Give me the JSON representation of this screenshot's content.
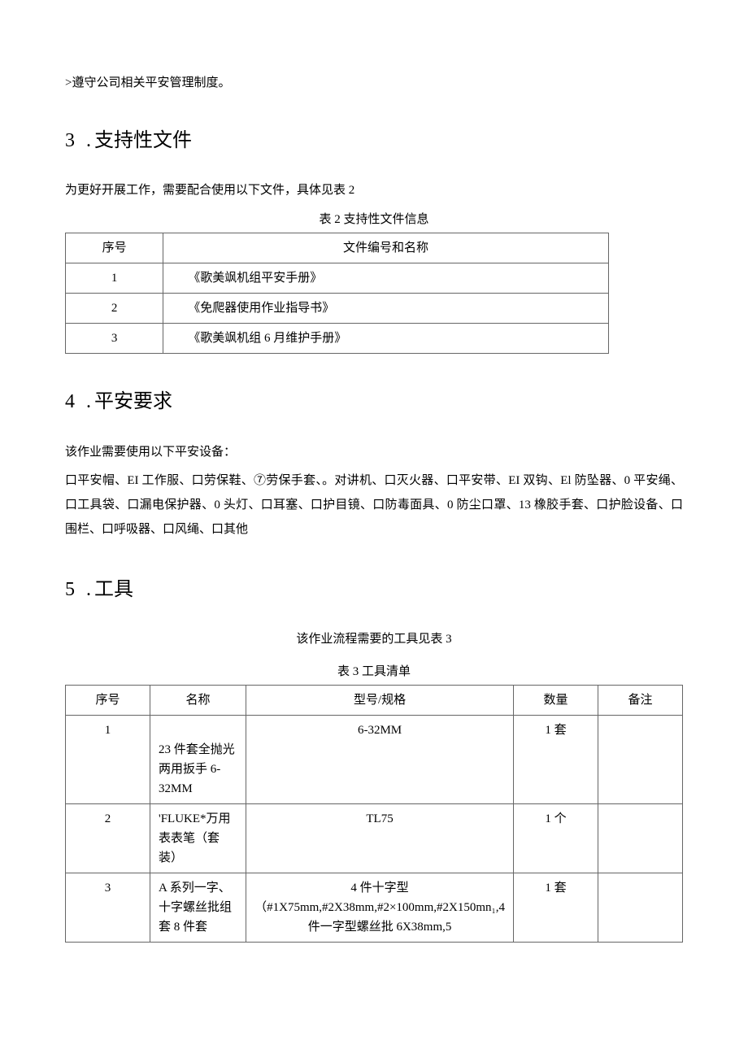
{
  "intro_line": ">遵守公司相关平安管理制度。",
  "s3": {
    "num": "3 .",
    "title": "支持性文件",
    "lead": "为更好开展工作，需要配合使用以下文件，具体见表 2",
    "caption": "表 2 支持性文件信息",
    "headers": [
      "序号",
      "文件编号和名称"
    ],
    "rows": [
      [
        "1",
        "《歌美飒机组平安手册》"
      ],
      [
        "2",
        "《免爬器使用作业指导书》"
      ],
      [
        "3",
        "《歌美飒机组 6 月维护手册》"
      ]
    ]
  },
  "s4": {
    "num": "4 .",
    "title": "平安要求",
    "lead": "该作业需要使用以下平安设备：",
    "body": "口平安帽、EI 工作服、口劳保鞋、⑦劳保手套、。对讲机、口灭火器、口平安带、EI 双钩、El 防坠器、0 平安绳、口工具袋、口漏电保护器、0 头灯、口耳塞、口护目镜、口防毒面具、0 防尘口罩、13 橡胶手套、口护脸设备、口围栏、口呼吸器、口风绳、口其他"
  },
  "s5": {
    "num": "5 .",
    "title": "工具",
    "lead": "该作业流程需要的工具见表 3",
    "caption": "表 3 工具清单",
    "headers": [
      "序号",
      "名称",
      "型号/规格",
      "数量",
      "备注"
    ],
    "rows": [
      {
        "no": "1",
        "name": "23 件套全抛光两用扳手 6-32MM",
        "spec": "6-32MM",
        "qty": "1 套",
        "note": ""
      },
      {
        "no": "2",
        "name": "'FLUKE*万用表表笔（套装）",
        "spec": "TL75",
        "qty": "1 个",
        "note": ""
      },
      {
        "no": "3",
        "name": "A 系列一字、十字螺丝批组套 8 件套",
        "spec": "4 件十字型（#1X75mm,#2X38mm,#2×100mm,#2X150mn₁,4 件一字型螺丝批 6X38mm,5",
        "qty": "1 套",
        "note": ""
      }
    ]
  }
}
